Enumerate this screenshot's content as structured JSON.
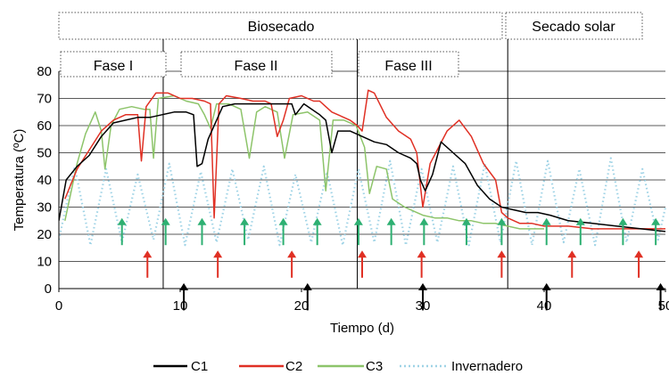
{
  "chart_data": {
    "type": "line",
    "xlabel": "Tiempo (d)",
    "ylabel": "Temperatura (ºC)",
    "xlim": [
      0,
      50
    ],
    "ylim": [
      0,
      80
    ],
    "x_ticks": [
      0,
      10,
      20,
      30,
      40,
      50
    ],
    "y_ticks": [
      0,
      10,
      20,
      30,
      40,
      50,
      60,
      70,
      80
    ],
    "grid": "horizontal",
    "legend_position": "bottom",
    "stage_labels": [
      {
        "label": "Biosecado",
        "x_start": 0,
        "x_end": 37
      },
      {
        "label": "Secado solar",
        "x_start": 37,
        "x_end": 50
      }
    ],
    "phase_labels": [
      {
        "label": "Fase I",
        "x_start": 0.2,
        "x_end": 8.2
      },
      {
        "label": "Fase II",
        "x_start": 9.2,
        "x_end": 20.7
      },
      {
        "label": "Fase III",
        "x_start": 22.5,
        "x_end": 32.3
      }
    ],
    "divider_lines_x": [
      8.6,
      24.6,
      37
    ],
    "series": [
      {
        "name": "C1",
        "color": "#000000",
        "style": "solid",
        "points": [
          [
            0,
            25
          ],
          [
            0.6,
            40
          ],
          [
            1.5,
            45
          ],
          [
            2.5,
            49
          ],
          [
            3.5,
            56
          ],
          [
            4.5,
            61
          ],
          [
            5.5,
            62
          ],
          [
            6.5,
            63
          ],
          [
            7.5,
            63
          ],
          [
            8.5,
            64
          ],
          [
            9.5,
            65
          ],
          [
            10.5,
            65
          ],
          [
            11.1,
            64
          ],
          [
            11.4,
            45
          ],
          [
            11.8,
            46
          ],
          [
            12.3,
            55
          ],
          [
            13,
            62
          ],
          [
            13.5,
            67
          ],
          [
            14.5,
            68
          ],
          [
            15.5,
            68
          ],
          [
            16.5,
            68
          ],
          [
            17.5,
            68
          ],
          [
            18.5,
            68
          ],
          [
            19.2,
            68
          ],
          [
            19.5,
            64
          ],
          [
            20.2,
            68
          ],
          [
            21.5,
            64
          ],
          [
            22,
            62
          ],
          [
            22.5,
            50
          ],
          [
            23,
            58
          ],
          [
            24,
            58
          ],
          [
            25,
            56
          ],
          [
            26,
            54
          ],
          [
            27,
            53
          ],
          [
            28,
            50
          ],
          [
            29,
            48
          ],
          [
            29.5,
            46
          ],
          [
            29.8,
            40
          ],
          [
            30.2,
            36
          ],
          [
            30.8,
            42
          ],
          [
            31.5,
            54
          ],
          [
            32.5,
            50
          ],
          [
            33.5,
            46
          ],
          [
            34.5,
            38
          ],
          [
            35.5,
            33
          ],
          [
            36.5,
            30
          ],
          [
            37.5,
            29
          ],
          [
            38.5,
            28
          ],
          [
            39.5,
            28
          ],
          [
            40.5,
            27
          ],
          [
            42,
            25
          ],
          [
            44,
            24
          ],
          [
            46,
            23
          ],
          [
            48,
            22
          ],
          [
            50,
            21
          ]
        ]
      },
      {
        "name": "C2",
        "color": "#e03024",
        "style": "solid",
        "points": [
          [
            0.5,
            33
          ],
          [
            1.5,
            44
          ],
          [
            2.5,
            51
          ],
          [
            3.5,
            58
          ],
          [
            4.5,
            62
          ],
          [
            5.5,
            64
          ],
          [
            6.5,
            64
          ],
          [
            6.8,
            47
          ],
          [
            7.2,
            67
          ],
          [
            8,
            72
          ],
          [
            9,
            72
          ],
          [
            10,
            70
          ],
          [
            11,
            70
          ],
          [
            12,
            69
          ],
          [
            12.5,
            68
          ],
          [
            12.8,
            26
          ],
          [
            13.2,
            68
          ],
          [
            13.8,
            71
          ],
          [
            15,
            70
          ],
          [
            16,
            69
          ],
          [
            17,
            69
          ],
          [
            17.5,
            68
          ],
          [
            18,
            56
          ],
          [
            18.5,
            62
          ],
          [
            19,
            70
          ],
          [
            20,
            71
          ],
          [
            21,
            69
          ],
          [
            21.5,
            69
          ],
          [
            22,
            67
          ],
          [
            22.5,
            65
          ],
          [
            23,
            64
          ],
          [
            24,
            62
          ],
          [
            24.6,
            60
          ],
          [
            25,
            58
          ],
          [
            25.5,
            73
          ],
          [
            26,
            72
          ],
          [
            27,
            63
          ],
          [
            28,
            58
          ],
          [
            29,
            55
          ],
          [
            29.5,
            50
          ],
          [
            30,
            30
          ],
          [
            30.6,
            46
          ],
          [
            32,
            58
          ],
          [
            33,
            62
          ],
          [
            34,
            56
          ],
          [
            35,
            46
          ],
          [
            36,
            40
          ],
          [
            36.5,
            28
          ],
          [
            37,
            26
          ],
          [
            38,
            24
          ],
          [
            39,
            24
          ],
          [
            40,
            23
          ],
          [
            42,
            23
          ],
          [
            44,
            22
          ],
          [
            46,
            22
          ],
          [
            48,
            22
          ],
          [
            50,
            22
          ]
        ]
      },
      {
        "name": "C3",
        "color": "#8dc46a",
        "style": "solid",
        "points": [
          [
            0.5,
            25
          ],
          [
            1.5,
            46
          ],
          [
            2.2,
            57
          ],
          [
            3,
            65
          ],
          [
            3.5,
            58
          ],
          [
            3.8,
            44
          ],
          [
            4.3,
            60
          ],
          [
            5,
            66
          ],
          [
            6,
            67
          ],
          [
            7,
            66
          ],
          [
            7.5,
            66
          ],
          [
            7.8,
            48
          ],
          [
            8.2,
            70
          ],
          [
            9.5,
            71
          ],
          [
            10.5,
            69
          ],
          [
            11.5,
            68
          ],
          [
            12,
            64
          ],
          [
            12.5,
            59
          ],
          [
            13,
            68
          ],
          [
            14,
            68
          ],
          [
            15,
            66
          ],
          [
            15.7,
            48
          ],
          [
            16.3,
            65
          ],
          [
            17,
            67
          ],
          [
            18,
            65
          ],
          [
            18.6,
            48
          ],
          [
            19.3,
            64
          ],
          [
            20.5,
            65
          ],
          [
            21.5,
            62
          ],
          [
            22,
            36
          ],
          [
            22.6,
            62
          ],
          [
            23.5,
            62
          ],
          [
            24.5,
            60
          ],
          [
            25.2,
            52
          ],
          [
            25.6,
            35
          ],
          [
            26.2,
            45
          ],
          [
            27,
            44
          ],
          [
            27.5,
            33
          ],
          [
            28.5,
            30
          ],
          [
            29.5,
            28
          ],
          [
            30,
            27
          ],
          [
            31,
            26
          ],
          [
            32,
            26
          ],
          [
            33,
            25
          ],
          [
            34,
            25
          ],
          [
            35,
            24
          ],
          [
            36,
            24
          ],
          [
            37,
            23
          ],
          [
            38,
            22
          ],
          [
            40,
            22
          ]
        ]
      },
      {
        "name": "Invernadero",
        "color": "#9fd3e6",
        "style": "dotted",
        "points": [
          [
            0,
            18
          ],
          [
            1.3,
            45
          ],
          [
            2.6,
            16
          ],
          [
            3.9,
            44
          ],
          [
            5.2,
            17
          ],
          [
            6.5,
            42
          ],
          [
            7.8,
            18
          ],
          [
            9.1,
            46
          ],
          [
            10.4,
            16
          ],
          [
            11.7,
            43
          ],
          [
            13,
            17
          ],
          [
            14.3,
            44
          ],
          [
            15.6,
            18
          ],
          [
            16.9,
            45
          ],
          [
            18.2,
            16
          ],
          [
            19.5,
            42
          ],
          [
            20.8,
            17
          ],
          [
            22.1,
            43
          ],
          [
            23.4,
            16
          ],
          [
            24.7,
            44
          ],
          [
            26,
            17
          ],
          [
            27.3,
            47
          ],
          [
            28.6,
            16
          ],
          [
            29.9,
            44
          ],
          [
            31.2,
            17
          ],
          [
            32.5,
            45
          ],
          [
            33.8,
            16
          ],
          [
            35.1,
            46
          ],
          [
            36.4,
            17
          ],
          [
            37.7,
            47
          ],
          [
            39,
            16
          ],
          [
            40.3,
            47
          ],
          [
            41.6,
            17
          ],
          [
            42.9,
            44
          ],
          [
            44.2,
            16
          ],
          [
            45.5,
            48
          ],
          [
            46.8,
            17
          ],
          [
            48.1,
            44
          ],
          [
            49.4,
            18
          ],
          [
            50,
            30
          ]
        ]
      }
    ],
    "arrows": {
      "green": {
        "color": "#2eb072",
        "y_tip": 26,
        "y_tail": 16,
        "x": [
          5.2,
          8.8,
          11.8,
          15.3,
          18.5,
          21.3,
          24.7,
          27.4,
          30.1,
          33.6,
          36.5,
          40.2,
          43,
          46.5,
          49.2
        ]
      },
      "red": {
        "color": "#e03024",
        "y_tip": 14,
        "y_tail": 4,
        "x": [
          7.3,
          13.1,
          19.2,
          25,
          29.9,
          36.5,
          42.3,
          47.8
        ]
      },
      "black": {
        "color": "#000000",
        "y_tip": 2,
        "y_tail": -8,
        "x": [
          10.3,
          20.5,
          30,
          40.2,
          49.6
        ]
      }
    }
  }
}
